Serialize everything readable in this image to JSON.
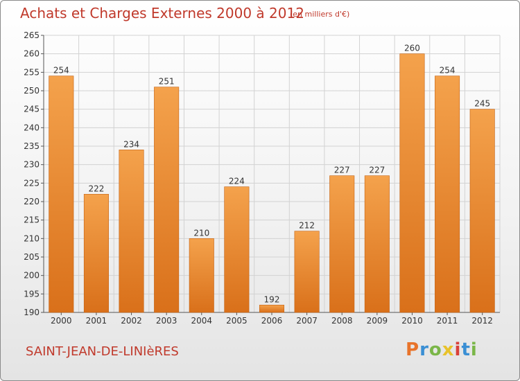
{
  "header": {
    "title": "Achats et Charges Externes 2000 à 2012",
    "unit": "(en milliers d'€)"
  },
  "footer": {
    "commune": "SAINT-JEAN-DE-LINIèRES",
    "brand_letters": [
      "P",
      "r",
      "o",
      "x",
      "i",
      "t",
      "i"
    ],
    "brand_colors": [
      "#e8732a",
      "#3a8fd4",
      "#7ab648",
      "#e8c22a",
      "#d9413a",
      "#3a8fd4",
      "#7ab648"
    ]
  },
  "colors": {
    "title": "#c0392b",
    "bar": "#ef8c2e",
    "bar_dark": "#d9701a",
    "grid": "#d2d2d2"
  },
  "chart_data": {
    "type": "bar",
    "title": "Achats et Charges Externes 2000 à 2012",
    "subtitle": "(en milliers d'€)",
    "categories": [
      "2000",
      "2001",
      "2002",
      "2003",
      "2004",
      "2005",
      "2006",
      "2007",
      "2008",
      "2009",
      "2010",
      "2011",
      "2012"
    ],
    "values": [
      254,
      222,
      234,
      251,
      210,
      224,
      192,
      212,
      227,
      227,
      260,
      254,
      245
    ],
    "ylim": [
      190,
      265
    ],
    "yticks": [
      190,
      195,
      200,
      205,
      210,
      215,
      220,
      225,
      230,
      235,
      240,
      245,
      250,
      255,
      260,
      265
    ],
    "grid": true,
    "xlabel": "",
    "ylabel": ""
  }
}
